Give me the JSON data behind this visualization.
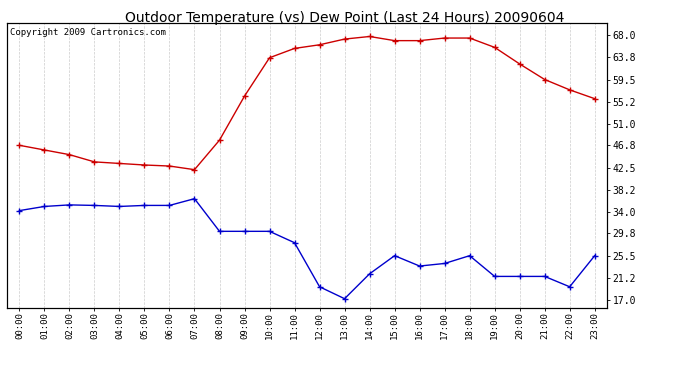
{
  "title": "Outdoor Temperature (vs) Dew Point (Last 24 Hours) 20090604",
  "copyright_text": "Copyright 2009 Cartronics.com",
  "x_labels": [
    "00:00",
    "01:00",
    "02:00",
    "03:00",
    "04:00",
    "05:00",
    "06:00",
    "07:00",
    "08:00",
    "09:00",
    "10:00",
    "11:00",
    "12:00",
    "13:00",
    "14:00",
    "15:00",
    "16:00",
    "17:00",
    "18:00",
    "19:00",
    "20:00",
    "21:00",
    "22:00",
    "23:00"
  ],
  "temp_red": [
    46.8,
    45.9,
    45.0,
    43.6,
    43.3,
    43.0,
    42.8,
    42.1,
    47.8,
    56.3,
    63.7,
    65.5,
    66.2,
    67.3,
    67.8,
    67.0,
    67.0,
    67.5,
    67.5,
    65.7,
    62.5,
    59.5,
    57.5,
    55.8
  ],
  "dew_blue": [
    34.2,
    35.0,
    35.3,
    35.2,
    35.0,
    35.2,
    35.2,
    36.5,
    30.2,
    30.2,
    30.2,
    28.0,
    19.5,
    17.2,
    22.0,
    25.5,
    23.5,
    24.0,
    25.5,
    21.5,
    21.5,
    21.5,
    19.5,
    25.5
  ],
  "y_right_ticks": [
    17.0,
    21.2,
    25.5,
    29.8,
    34.0,
    38.2,
    42.5,
    46.8,
    51.0,
    55.2,
    59.5,
    63.8,
    68.0
  ],
  "ylim": [
    15.5,
    70.5
  ],
  "red_color": "#cc0000",
  "blue_color": "#0000cc",
  "grid_color": "#cccccc",
  "bg_color": "#ffffff",
  "title_fontsize": 10,
  "copyright_fontsize": 6.5
}
